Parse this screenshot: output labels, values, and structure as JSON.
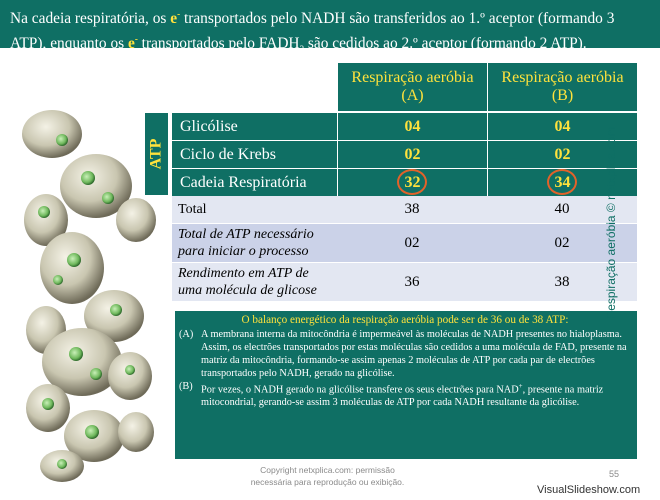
{
  "banner": {
    "p1": "Na cadeia respiratória, os ",
    "e1": "e",
    "sup1": "-",
    "p2": " transportados pelo NADH são transferidos ao 1.º aceptor (formando 3 ATP), enquanto os ",
    "e2": "e",
    "sup2": "-",
    "p3": " transportados pelo FADH",
    "sub": "2",
    "p4": " são cedidos ao 2.º aceptor (formando 2 ATP)."
  },
  "side_credit": "Respiração aeróbia © netxplica.com",
  "atp_label": "ATP",
  "table": {
    "col_a": [
      "Respiração aeróbia",
      "(A)"
    ],
    "col_b": [
      "Respiração aeróbia",
      "(B)"
    ],
    "atp_rows": [
      {
        "label": "Glicólise",
        "a": "04",
        "b": "04"
      },
      {
        "label": "Ciclo de Krebs",
        "a": "02",
        "b": "02"
      },
      {
        "label": "Cadeia Respiratória",
        "a": "32",
        "b": "34"
      }
    ],
    "total": {
      "label": "Total",
      "a": "38",
      "b": "40"
    },
    "needed": {
      "label": [
        "Total de ATP necessário",
        "para iniciar o processo"
      ],
      "a": "02",
      "b": "02"
    },
    "yield": {
      "label": [
        "Rendimento em ATP de",
        "uma molécula de glicose"
      ],
      "a": "36",
      "b": "38"
    }
  },
  "note": {
    "title": "O balanço energético da respiração aeróbia pode ser de 36 ou de 38 ATP:",
    "a_key": "(A)",
    "a_text": "A membrana interna da mitocôndria é impermeável às moléculas de NADH presentes no hialoplasma. Assim, os electrões transportados por estas moléculas são cedidos a uma molécula de FAD, presente na matriz da mitocôndria, formando-se assim apenas 2 moléculas de ATP por cada par de electrões transportados pelo NADH, gerado na glicólise.",
    "b_key": "(B)",
    "b_text_1": "Por vezes, o NADH gerado na glicólise transfere os seus electrões para NAD",
    "b_sup": "+",
    "b_text_2": ", presente na matriz mitocondrial, gerando-se assim 3 moléculas de ATP por cada NADH resultante da glicólise."
  },
  "copyright": [
    "Copyright netxplica.com: permissão",
    "necessária para reprodução ou exibição."
  ],
  "page_number": "55",
  "watermark": "VisualSlideshow.com",
  "colors": {
    "teal": "#0f6f64",
    "yellow": "#ffe23c",
    "light_row": "#e3e7f2",
    "light_row_alt": "#cbd2e8",
    "ring": "#e2622a"
  },
  "image": {
    "subject": "yeast-cells-illustration"
  }
}
